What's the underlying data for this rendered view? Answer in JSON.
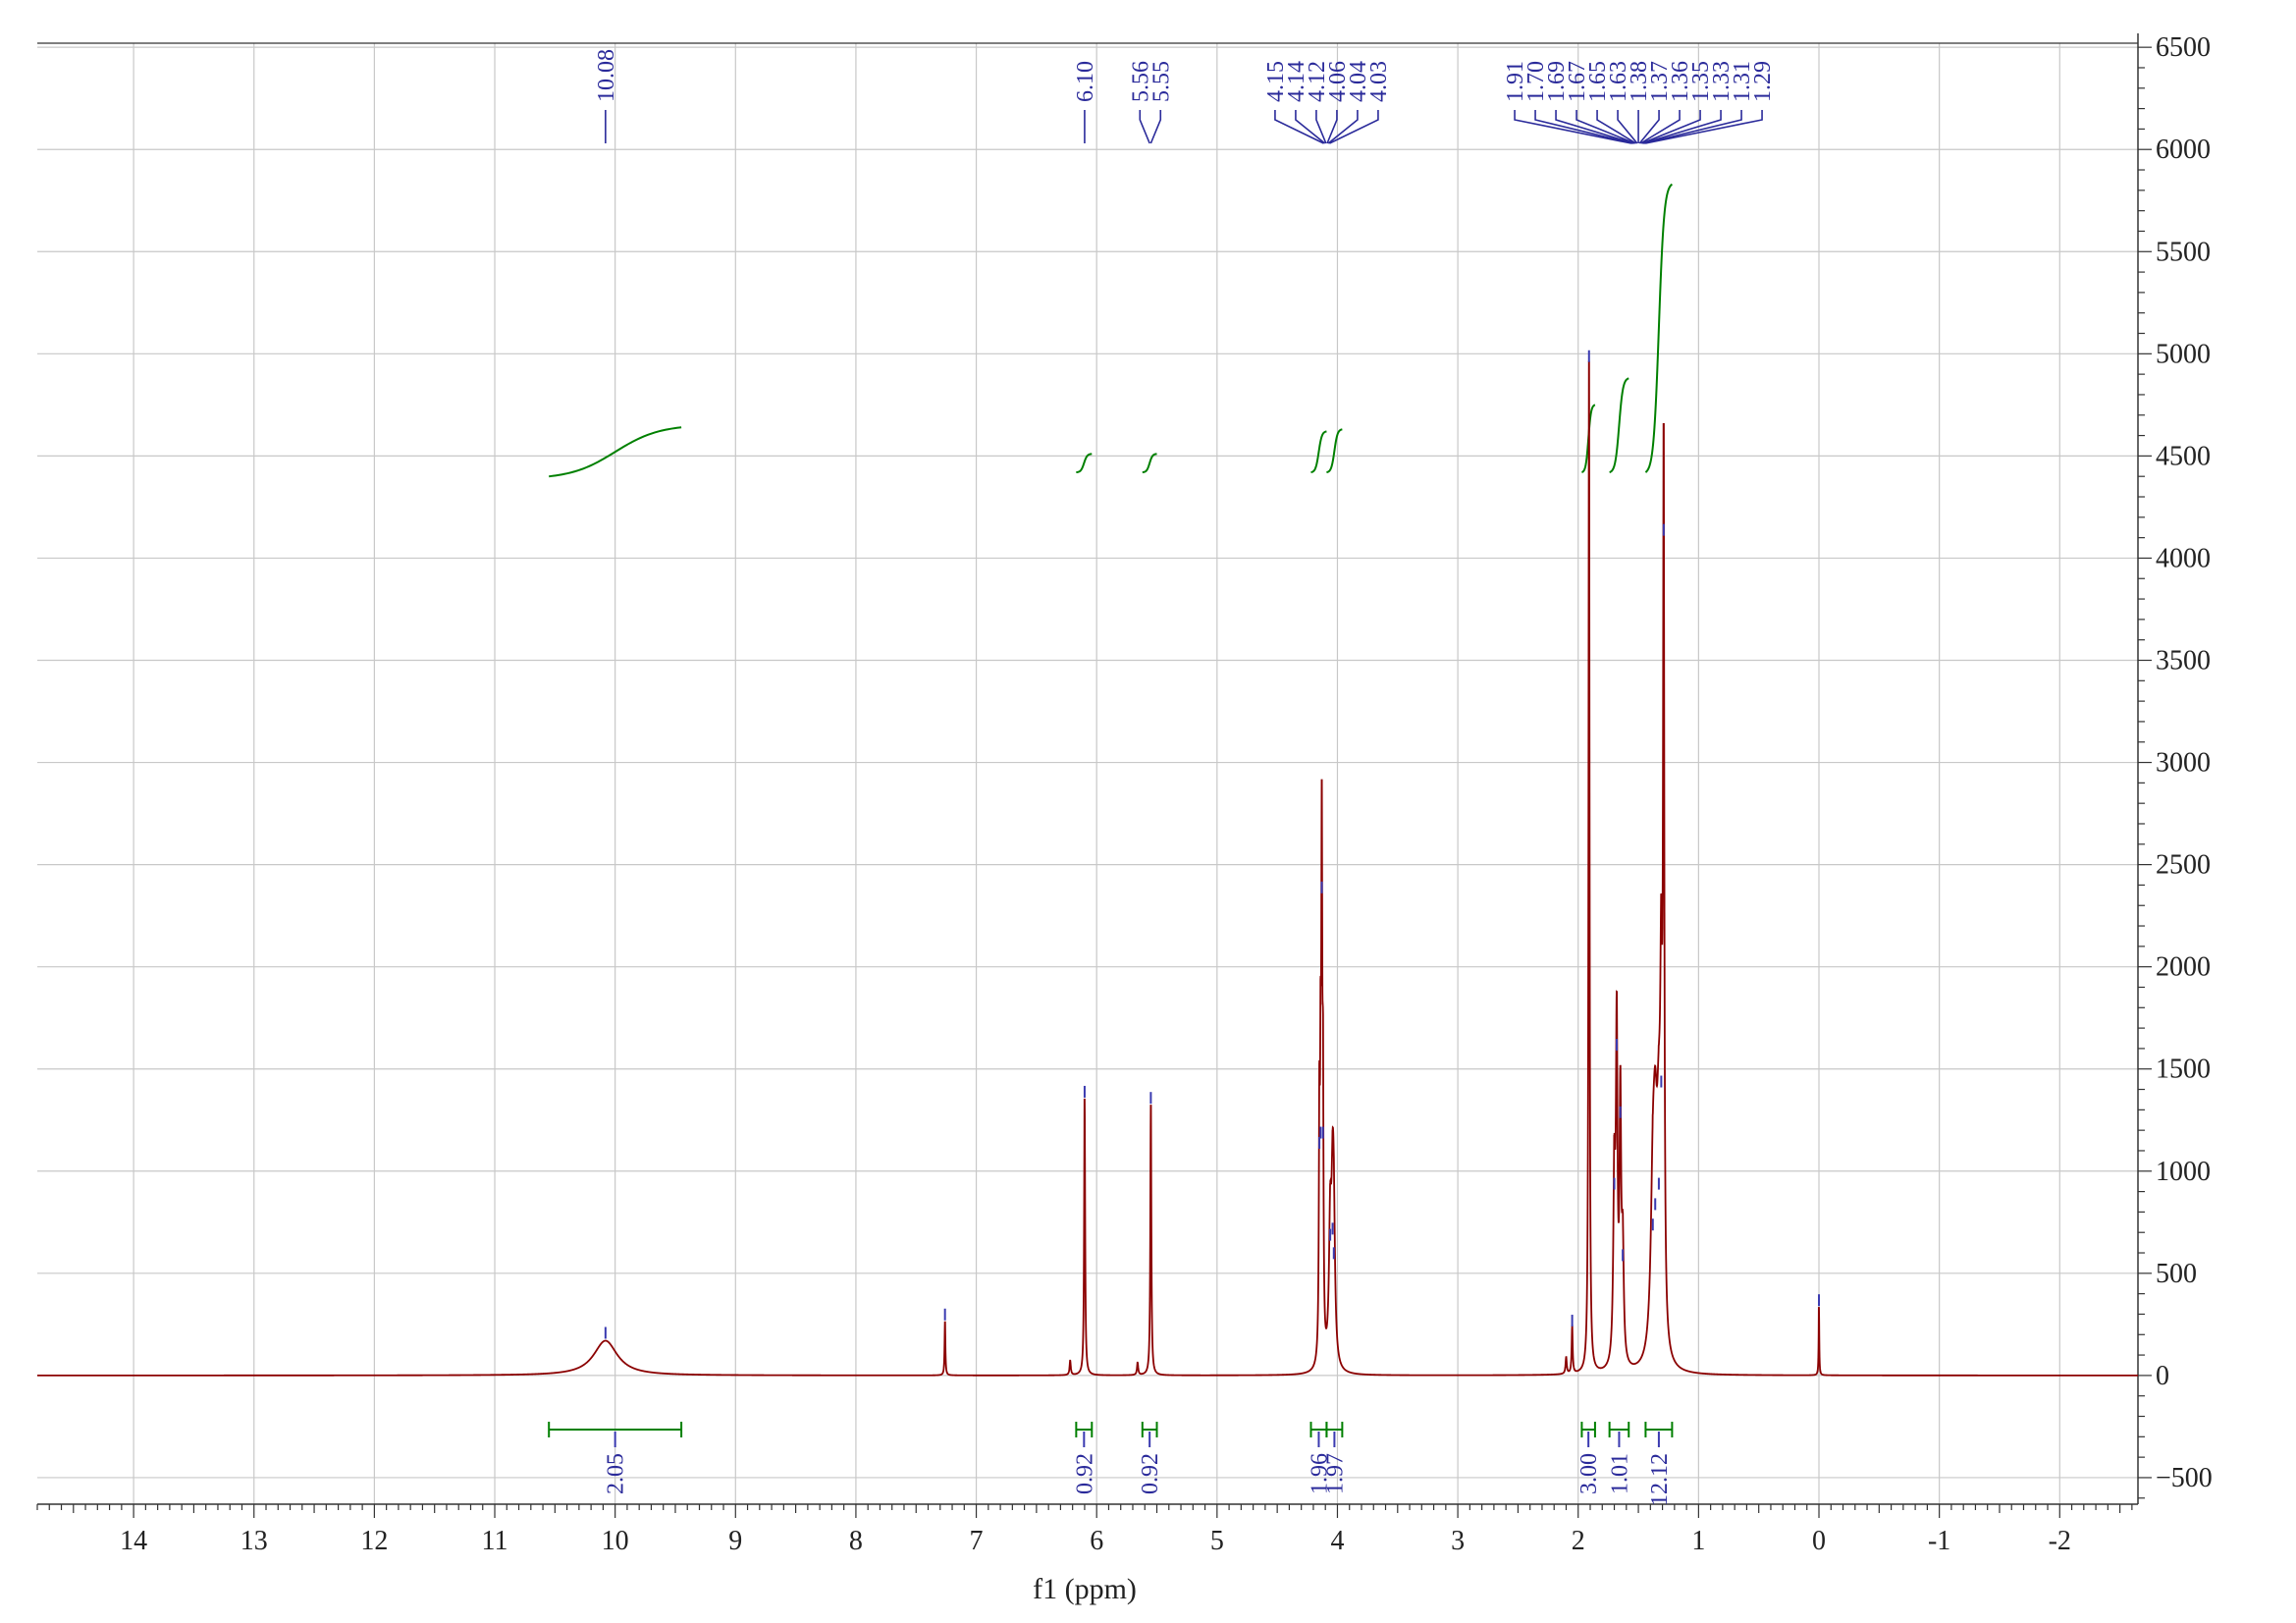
{
  "chart_data": {
    "type": "line",
    "title": "",
    "xlabel": "f1 (ppm)",
    "ylabel": "",
    "xlim": [
      14.8,
      -2.65
    ],
    "ylim": [
      -630,
      6520
    ],
    "x_ticks": [
      "14",
      "13",
      "12",
      "11",
      "10",
      "9",
      "8",
      "7",
      "6",
      "5",
      "4",
      "3",
      "2",
      "1",
      "0",
      "-1",
      "-2"
    ],
    "x_tick_values": [
      14,
      13,
      12,
      11,
      10,
      9,
      8,
      7,
      6,
      5,
      4,
      3,
      2,
      1,
      0,
      -1,
      -2
    ],
    "y_ticks": [
      "6500",
      "6000",
      "5500",
      "5000",
      "4500",
      "4000",
      "3500",
      "3000",
      "2500",
      "2000",
      "1500",
      "1000",
      "500",
      "0",
      "-500"
    ],
    "y_tick_values": [
      6500,
      6000,
      5500,
      5000,
      4500,
      4000,
      3500,
      3000,
      2500,
      2000,
      1500,
      1000,
      500,
      0,
      -500
    ],
    "grid": true,
    "colors": {
      "spectrum": "#8b0000",
      "integral": "#008000",
      "peak_label": "#2a2a9a",
      "grid": "#c8c8c8",
      "axis": "#333333"
    },
    "spectrum_peaks": [
      {
        "x": 10.08,
        "y": 170,
        "w": 0.12
      },
      {
        "x": 7.26,
        "y": 260,
        "w": 0.004
      },
      {
        "x": 6.22,
        "y": 70,
        "w": 0.006
      },
      {
        "x": 6.1,
        "y": 1350,
        "w": 0.005
      },
      {
        "x": 5.66,
        "y": 60,
        "w": 0.006
      },
      {
        "x": 5.55,
        "y": 1320,
        "w": 0.005
      },
      {
        "x": 4.15,
        "y": 1100,
        "w": 0.005
      },
      {
        "x": 4.14,
        "y": 1150,
        "w": 0.005
      },
      {
        "x": 4.13,
        "y": 2350,
        "w": 0.005
      },
      {
        "x": 4.12,
        "y": 1150,
        "w": 0.005
      },
      {
        "x": 4.06,
        "y": 650,
        "w": 0.012
      },
      {
        "x": 4.04,
        "y": 680,
        "w": 0.012
      },
      {
        "x": 4.03,
        "y": 560,
        "w": 0.012
      },
      {
        "x": 2.1,
        "y": 80,
        "w": 0.006
      },
      {
        "x": 2.05,
        "y": 230,
        "w": 0.005
      },
      {
        "x": 1.91,
        "y": 4950,
        "w": 0.005
      },
      {
        "x": 1.7,
        "y": 900,
        "w": 0.01
      },
      {
        "x": 1.68,
        "y": 1580,
        "w": 0.008
      },
      {
        "x": 1.65,
        "y": 1250,
        "w": 0.008
      },
      {
        "x": 1.63,
        "y": 550,
        "w": 0.01
      },
      {
        "x": 1.38,
        "y": 700,
        "w": 0.02
      },
      {
        "x": 1.36,
        "y": 800,
        "w": 0.02
      },
      {
        "x": 1.33,
        "y": 900,
        "w": 0.02
      },
      {
        "x": 1.31,
        "y": 1400,
        "w": 0.01
      },
      {
        "x": 1.29,
        "y": 4100,
        "w": 0.006
      },
      {
        "x": 0.0,
        "y": 330,
        "w": 0.003
      }
    ],
    "peak_labels": [
      {
        "group": 1,
        "anchor": 10.08,
        "labels": [
          "10.08"
        ]
      },
      {
        "group": 2,
        "anchor": 6.1,
        "labels": [
          "6.10"
        ]
      },
      {
        "group": 3,
        "anchor": 5.555,
        "labels": [
          "5.56",
          "5.55"
        ]
      },
      {
        "group": 4,
        "anchor": 4.09,
        "labels": [
          "4.15",
          "4.14",
          "4.12",
          "4.06",
          "4.04",
          "4.03"
        ]
      },
      {
        "group": 5,
        "anchor": 1.5,
        "labels": [
          "1.91",
          "1.70",
          "1.69",
          "1.67",
          "1.65",
          "1.63",
          "1.38",
          "1.37",
          "1.36",
          "1.35",
          "1.33",
          "1.31",
          "1.29"
        ]
      }
    ],
    "integrals": [
      {
        "from": 10.55,
        "to": 9.45,
        "value": "2.05",
        "curve_start": 4400,
        "curve_end": 4640
      },
      {
        "from": 6.17,
        "to": 6.04,
        "value": "0.92",
        "curve_start": 4420,
        "curve_end": 4510
      },
      {
        "from": 5.62,
        "to": 5.5,
        "value": "0.92",
        "curve_start": 4420,
        "curve_end": 4510
      },
      {
        "from": 4.22,
        "to": 4.09,
        "value": "1.96",
        "curve_start": 4420,
        "curve_end": 4620
      },
      {
        "from": 4.09,
        "to": 3.96,
        "value": "1.97",
        "curve_start": 4420,
        "curve_end": 4630
      },
      {
        "from": 1.97,
        "to": 1.86,
        "value": "3.00",
        "curve_start": 4420,
        "curve_end": 4750
      },
      {
        "from": 1.74,
        "to": 1.58,
        "value": "1.01",
        "curve_start": 4420,
        "curve_end": 4880
      },
      {
        "from": 1.44,
        "to": 1.22,
        "value": "12.12",
        "curve_start": 4420,
        "curve_end": 5830
      }
    ]
  }
}
